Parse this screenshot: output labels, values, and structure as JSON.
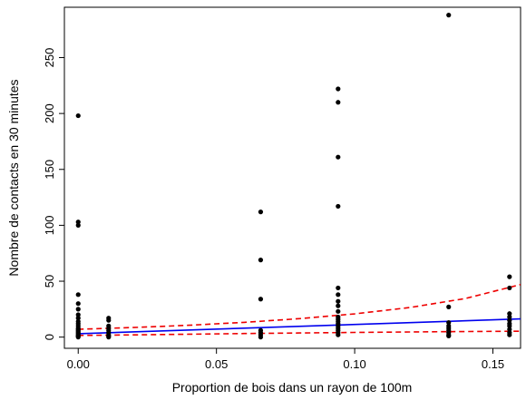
{
  "chart_data": {
    "type": "scatter",
    "title": "",
    "xlabel": "Proportion de bois dans un rayon de 100m",
    "ylabel": "Nombre de contacts en 30 minutes",
    "xlim": [
      -0.005,
      0.16
    ],
    "ylim": [
      -10,
      295
    ],
    "xticks": [
      0.0,
      0.05,
      0.1,
      0.15
    ],
    "xtick_labels": [
      "0.00",
      "0.05",
      "0.10",
      "0.15"
    ],
    "yticks": [
      0,
      50,
      100,
      150,
      200,
      250
    ],
    "ytick_labels": [
      "0",
      "50",
      "100",
      "150",
      "200",
      "250"
    ],
    "grid": false,
    "legend": "none",
    "points": {
      "x": [
        0,
        0,
        0,
        0,
        0,
        0,
        0,
        0,
        0,
        0,
        0,
        0,
        0,
        0,
        0,
        0,
        0,
        0,
        0,
        0,
        0,
        0.011,
        0.011,
        0.011,
        0.011,
        0.011,
        0.011,
        0.011,
        0.011,
        0.011,
        0.066,
        0.066,
        0.066,
        0.066,
        0.066,
        0.066,
        0.066,
        0.094,
        0.094,
        0.094,
        0.094,
        0.094,
        0.094,
        0.094,
        0.094,
        0.094,
        0.094,
        0.094,
        0.094,
        0.094,
        0.094,
        0.094,
        0.094,
        0.094,
        0.094,
        0.134,
        0.134,
        0.134,
        0.134,
        0.134,
        0.134,
        0.134,
        0.134,
        0.134,
        0.156,
        0.156,
        0.156,
        0.156,
        0.156,
        0.156,
        0.156,
        0.156,
        0.156,
        0.156
      ],
      "y": [
        198,
        103,
        100,
        38,
        30,
        25,
        20,
        17,
        14,
        12,
        10,
        8,
        7,
        6,
        5,
        4,
        3,
        2,
        1,
        1,
        0,
        17,
        15,
        10,
        8,
        6,
        4,
        2,
        1,
        0,
        112,
        69,
        34,
        6,
        4,
        2,
        0,
        222,
        210,
        161,
        117,
        44,
        38,
        32,
        28,
        23,
        18,
        16,
        14,
        12,
        10,
        8,
        6,
        4,
        2,
        288,
        27,
        13,
        10,
        8,
        6,
        4,
        2,
        1,
        54,
        44,
        21,
        18,
        15,
        12,
        10,
        7,
        4,
        2
      ]
    },
    "series": [
      {
        "style": "solid",
        "color": "#0000ee",
        "x": [
          0,
          0.16
        ],
        "y": [
          3.0,
          16.3
        ]
      },
      {
        "style": "dashed",
        "color": "#ee0000",
        "x": [
          0,
          0.02,
          0.04,
          0.06,
          0.08,
          0.1,
          0.12,
          0.14,
          0.16
        ],
        "y": [
          7.0,
          8.6,
          10.6,
          13.2,
          16.5,
          20.8,
          26.5,
          34.5,
          47.0
        ]
      },
      {
        "style": "dashed",
        "color": "#ee0000",
        "x": [
          0,
          0.02,
          0.04,
          0.06,
          0.08,
          0.1,
          0.12,
          0.14,
          0.16
        ],
        "y": [
          1.5,
          2.0,
          2.6,
          3.2,
          3.7,
          4.2,
          4.6,
          5.0,
          5.3
        ]
      }
    ]
  }
}
